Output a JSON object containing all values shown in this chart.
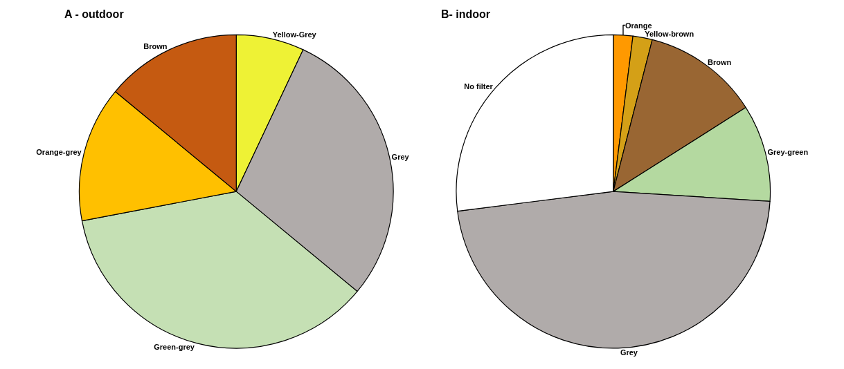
{
  "chart_data": [
    {
      "type": "pie",
      "title": "A - outdoor",
      "categories": [
        "Yellow-Grey",
        "Grey",
        "Green-grey",
        "Orange-grey",
        "Brown"
      ],
      "values": [
        7,
        29,
        36,
        14,
        14
      ],
      "colors": [
        "#eef235",
        "#b0abaa",
        "#c5e0b4",
        "#ffc000",
        "#c55a11"
      ],
      "legend": false
    },
    {
      "type": "pie",
      "title": "B- indoor",
      "categories": [
        "Orange",
        "Yellow-brown",
        "Brown",
        "Grey-green",
        "Grey",
        "No filter"
      ],
      "values": [
        2,
        2,
        12,
        10,
        47,
        27
      ],
      "colors": [
        "#ff9900",
        "#d4a017",
        "#996633",
        "#b4d9a0",
        "#b0abaa",
        "#ffffff"
      ],
      "legend": false
    }
  ]
}
